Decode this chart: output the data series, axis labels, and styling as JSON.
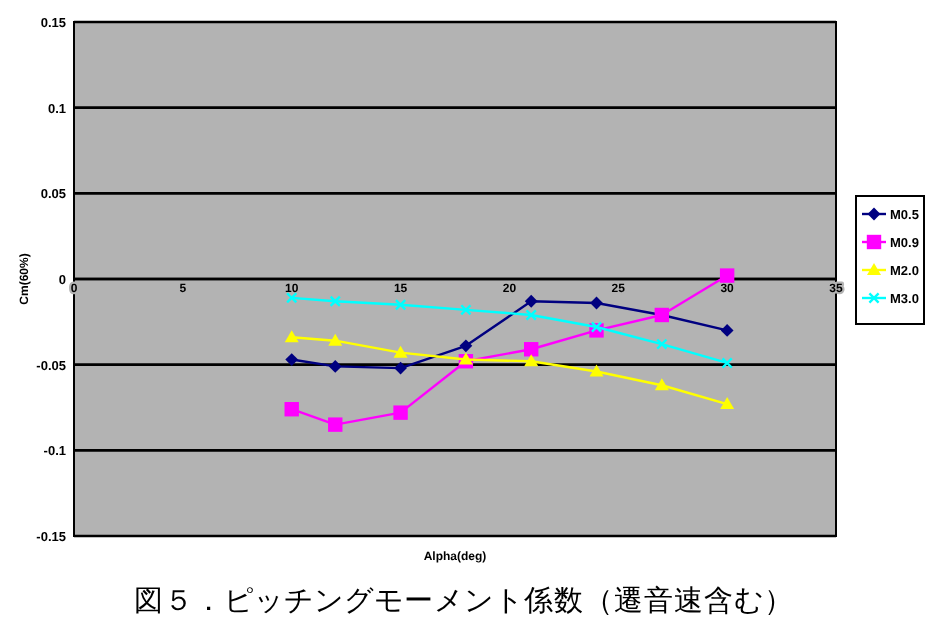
{
  "chart_data": {
    "type": "line",
    "xlabel": "Alpha(deg)",
    "ylabel": "Cm(60%)",
    "annotations": [
      "図５．ピッチングモーメント係数（遷音速含む）"
    ],
    "x": [
      10,
      12,
      15,
      18,
      21,
      24,
      27,
      30
    ],
    "series": [
      {
        "name": "M0.5",
        "color": "#000080",
        "marker": "diamond",
        "values": [
          -0.047,
          -0.051,
          -0.052,
          -0.039,
          -0.013,
          -0.014,
          -0.021,
          -0.03
        ]
      },
      {
        "name": "M0.9",
        "color": "#ff00ff",
        "marker": "square",
        "values": [
          -0.076,
          -0.085,
          -0.078,
          -0.048,
          -0.041,
          -0.03,
          -0.021,
          0.002
        ]
      },
      {
        "name": "M2.0",
        "color": "#ffff00",
        "marker": "triangle",
        "values": [
          -0.034,
          -0.036,
          -0.043,
          -0.047,
          -0.048,
          -0.054,
          -0.062,
          -0.073
        ]
      },
      {
        "name": "M3.0",
        "color": "#00ffff",
        "marker": "cross",
        "values": [
          -0.011,
          -0.013,
          -0.015,
          -0.018,
          -0.021,
          -0.028,
          -0.038,
          -0.049
        ]
      }
    ],
    "xlim": [
      0,
      35
    ],
    "xticks": [
      0,
      5,
      10,
      15,
      20,
      25,
      30,
      35
    ],
    "ylim": [
      -0.15,
      0.15
    ],
    "yticks": [
      0.15,
      0.1,
      0.05,
      0,
      -0.05,
      -0.1,
      -0.15
    ],
    "grid": "y",
    "legend": "right",
    "line_style": "solid"
  }
}
